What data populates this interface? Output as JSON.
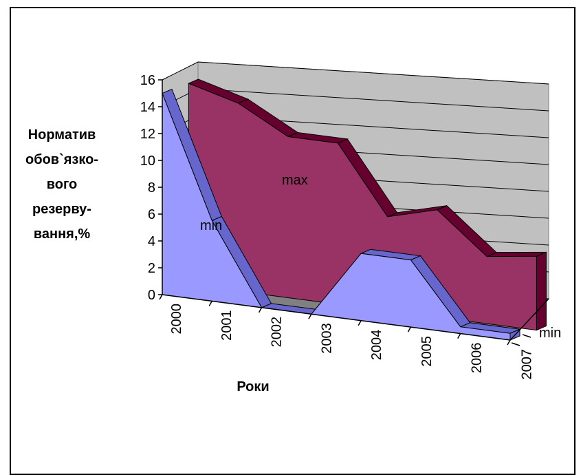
{
  "chart_data": {
    "type": "area",
    "title": "",
    "ylabel_lines": [
      "Норматив",
      "обов`язко-",
      "вого",
      "резерву-",
      "вання,%"
    ],
    "xlabel": "Роки",
    "ylim": [
      0,
      16
    ],
    "yticks": [
      "0",
      "2",
      "4",
      "6",
      "8",
      "10",
      "12",
      "14",
      "16"
    ],
    "categories": [
      "2000",
      "2001",
      "2002",
      "2003",
      "2004",
      "2005",
      "2006",
      "2007"
    ],
    "depth_axis_label": "min",
    "series": [
      {
        "name": "min",
        "values": [
          15,
          6,
          0,
          0,
          5,
          5,
          0.5,
          0.5
        ],
        "color": "#9999ff"
      },
      {
        "name": "max",
        "values": [
          15,
          14,
          12,
          12,
          7,
          8,
          5,
          5.5
        ],
        "color": "#993366"
      }
    ],
    "grid": true
  }
}
